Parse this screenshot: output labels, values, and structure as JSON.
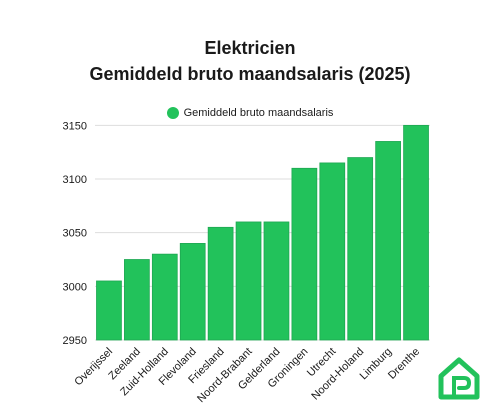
{
  "header": {
    "title": "Elektricien",
    "subtitle": "Gemiddeld bruto maandsalaris (2025)"
  },
  "legend": {
    "label": "Gemiddeld bruto maandsalaris"
  },
  "colors": {
    "bar": "#22c25b",
    "bar_edge": "#1ea752",
    "grid": "#dddddd",
    "text": "#1a1a1a",
    "logo": "#22c25b"
  },
  "chart_data": {
    "type": "bar",
    "title": "Elektricien",
    "subtitle": "Gemiddeld bruto maandsalaris (2025)",
    "categories": [
      "Overijssel",
      "Zeeland",
      "Zuid-Holland",
      "Flevoland",
      "Friesland",
      "Noord-Brabant",
      "Gelderland",
      "Groningen",
      "Utrecht",
      "Noord-Holand",
      "Limburg",
      "Drenthe"
    ],
    "series": [
      {
        "name": "Gemiddeld bruto maandsalaris",
        "values": [
          3005,
          3025,
          3030,
          3040,
          3055,
          3060,
          3060,
          3110,
          3115,
          3120,
          3135,
          3150
        ]
      }
    ],
    "ylim": [
      2950,
      3155
    ],
    "yticks": [
      2950,
      3000,
      3050,
      3100,
      3150
    ],
    "grid": true,
    "legend_position": "top-center"
  }
}
